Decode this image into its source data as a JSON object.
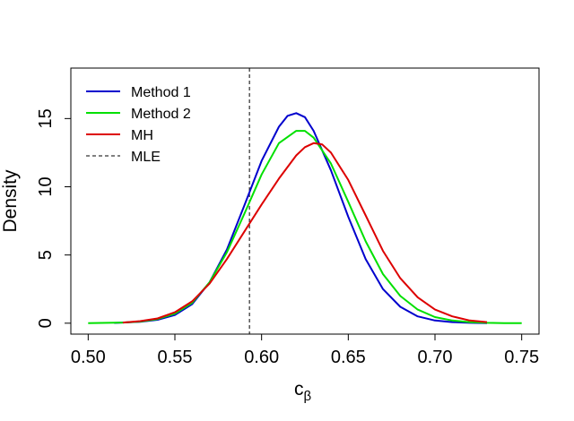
{
  "chart_data": {
    "type": "line",
    "title": "",
    "xlabel": "c",
    "xlabel_subscript": "β",
    "ylabel": "Density",
    "xlim": [
      0.49,
      0.76
    ],
    "ylim": [
      -0.8,
      18.7
    ],
    "xticks": [
      0.5,
      0.55,
      0.6,
      0.65,
      0.7,
      0.75
    ],
    "xtick_labels": [
      "0.50",
      "0.55",
      "0.60",
      "0.65",
      "0.70",
      "0.75"
    ],
    "yticks": [
      0,
      5,
      10,
      15
    ],
    "ytick_labels": [
      "0",
      "5",
      "10",
      "15"
    ],
    "legend_position": "top-left",
    "vline": {
      "name": "MLE",
      "x": 0.593,
      "color": "#000000",
      "dashed": true
    },
    "series": [
      {
        "name": "Method 1",
        "color": "#0000CD",
        "x": [
          0.515,
          0.53,
          0.54,
          0.55,
          0.56,
          0.57,
          0.58,
          0.59,
          0.6,
          0.61,
          0.615,
          0.62,
          0.625,
          0.63,
          0.64,
          0.65,
          0.66,
          0.67,
          0.68,
          0.69,
          0.7,
          0.71,
          0.72,
          0.73
        ],
        "y": [
          0.02,
          0.1,
          0.25,
          0.6,
          1.4,
          3.0,
          5.4,
          8.6,
          11.9,
          14.4,
          15.2,
          15.4,
          15.1,
          14.1,
          11.2,
          7.8,
          4.7,
          2.5,
          1.2,
          0.5,
          0.2,
          0.08,
          0.03,
          0.01
        ]
      },
      {
        "name": "Method 2",
        "color": "#00E000",
        "x": [
          0.5,
          0.52,
          0.53,
          0.54,
          0.55,
          0.56,
          0.57,
          0.58,
          0.59,
          0.6,
          0.61,
          0.62,
          0.625,
          0.63,
          0.64,
          0.65,
          0.66,
          0.67,
          0.68,
          0.69,
          0.7,
          0.71,
          0.72,
          0.73,
          0.74,
          0.75
        ],
        "y": [
          0.0,
          0.05,
          0.12,
          0.3,
          0.7,
          1.5,
          3.0,
          5.2,
          8.0,
          10.9,
          13.2,
          14.1,
          14.1,
          13.6,
          11.7,
          8.9,
          6.0,
          3.6,
          2.0,
          1.0,
          0.45,
          0.2,
          0.08,
          0.03,
          0.01,
          0.0
        ]
      },
      {
        "name": "MH",
        "color": "#DD0000",
        "x": [
          0.52,
          0.53,
          0.54,
          0.55,
          0.56,
          0.57,
          0.58,
          0.59,
          0.6,
          0.61,
          0.62,
          0.625,
          0.63,
          0.635,
          0.64,
          0.65,
          0.66,
          0.67,
          0.68,
          0.69,
          0.7,
          0.71,
          0.72,
          0.73
        ],
        "y": [
          0.05,
          0.15,
          0.35,
          0.8,
          1.6,
          2.9,
          4.7,
          6.7,
          8.7,
          10.6,
          12.3,
          12.9,
          13.2,
          13.1,
          12.5,
          10.5,
          7.9,
          5.3,
          3.3,
          1.9,
          1.0,
          0.5,
          0.2,
          0.08
        ]
      }
    ]
  }
}
